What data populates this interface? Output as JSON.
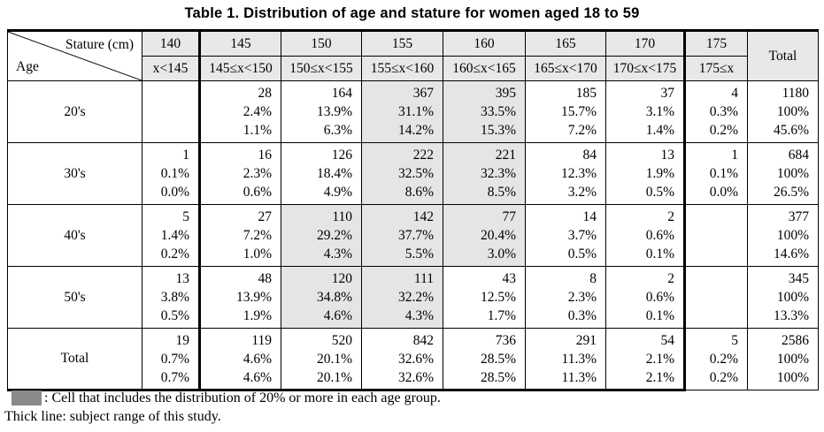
{
  "title": "Table 1. Distribution of age and stature for women aged 18 to 59",
  "corner": {
    "stature_label": "Stature (cm)",
    "age_label": "Age"
  },
  "total_header": "Total",
  "columns": [
    {
      "value": "140",
      "range": "x<145"
    },
    {
      "value": "145",
      "range": "145≤x<150"
    },
    {
      "value": "150",
      "range": "150≤x<155"
    },
    {
      "value": "155",
      "range": "155≤x<160"
    },
    {
      "value": "160",
      "range": "160≤x<165"
    },
    {
      "value": "165",
      "range": "165≤x<170"
    },
    {
      "value": "170",
      "range": "170≤x<175"
    },
    {
      "value": "175",
      "range": "175≤x"
    }
  ],
  "rows": [
    {
      "label": "20's",
      "cells": [
        {
          "lines": [],
          "shaded": false
        },
        {
          "lines": [
            "28",
            "2.4%",
            "1.1%"
          ],
          "shaded": false
        },
        {
          "lines": [
            "164",
            "13.9%",
            "6.3%"
          ],
          "shaded": false
        },
        {
          "lines": [
            "367",
            "31.1%",
            "14.2%"
          ],
          "shaded": true
        },
        {
          "lines": [
            "395",
            "33.5%",
            "15.3%"
          ],
          "shaded": true
        },
        {
          "lines": [
            "185",
            "15.7%",
            "7.2%"
          ],
          "shaded": false
        },
        {
          "lines": [
            "37",
            "3.1%",
            "1.4%"
          ],
          "shaded": false
        },
        {
          "lines": [
            "4",
            "0.3%",
            "0.2%"
          ],
          "shaded": false
        }
      ],
      "total": [
        "1180",
        "100%",
        "45.6%"
      ]
    },
    {
      "label": "30's",
      "cells": [
        {
          "lines": [
            "1",
            "0.1%",
            "0.0%"
          ],
          "shaded": false
        },
        {
          "lines": [
            "16",
            "2.3%",
            "0.6%"
          ],
          "shaded": false
        },
        {
          "lines": [
            "126",
            "18.4%",
            "4.9%"
          ],
          "shaded": false
        },
        {
          "lines": [
            "222",
            "32.5%",
            "8.6%"
          ],
          "shaded": true
        },
        {
          "lines": [
            "221",
            "32.3%",
            "8.5%"
          ],
          "shaded": true
        },
        {
          "lines": [
            "84",
            "12.3%",
            "3.2%"
          ],
          "shaded": false
        },
        {
          "lines": [
            "13",
            "1.9%",
            "0.5%"
          ],
          "shaded": false
        },
        {
          "lines": [
            "1",
            "0.1%",
            "0.0%"
          ],
          "shaded": false
        }
      ],
      "total": [
        "684",
        "100%",
        "26.5%"
      ]
    },
    {
      "label": "40's",
      "cells": [
        {
          "lines": [
            "5",
            "1.4%",
            "0.2%"
          ],
          "shaded": false
        },
        {
          "lines": [
            "27",
            "7.2%",
            "1.0%"
          ],
          "shaded": false
        },
        {
          "lines": [
            "110",
            "29.2%",
            "4.3%"
          ],
          "shaded": true
        },
        {
          "lines": [
            "142",
            "37.7%",
            "5.5%"
          ],
          "shaded": true
        },
        {
          "lines": [
            "77",
            "20.4%",
            "3.0%"
          ],
          "shaded": true
        },
        {
          "lines": [
            "14",
            "3.7%",
            "0.5%"
          ],
          "shaded": false
        },
        {
          "lines": [
            "2",
            "0.6%",
            "0.1%"
          ],
          "shaded": false
        },
        {
          "lines": [],
          "shaded": false
        }
      ],
      "total": [
        "377",
        "100%",
        "14.6%"
      ]
    },
    {
      "label": "50's",
      "cells": [
        {
          "lines": [
            "13",
            "3.8%",
            "0.5%"
          ],
          "shaded": false
        },
        {
          "lines": [
            "48",
            "13.9%",
            "1.9%"
          ],
          "shaded": false
        },
        {
          "lines": [
            "120",
            "34.8%",
            "4.6%"
          ],
          "shaded": true
        },
        {
          "lines": [
            "111",
            "32.2%",
            "4.3%"
          ],
          "shaded": true
        },
        {
          "lines": [
            "43",
            "12.5%",
            "1.7%"
          ],
          "shaded": false
        },
        {
          "lines": [
            "8",
            "2.3%",
            "0.3%"
          ],
          "shaded": false
        },
        {
          "lines": [
            "2",
            "0.6%",
            "0.1%"
          ],
          "shaded": false
        },
        {
          "lines": [],
          "shaded": false
        }
      ],
      "total": [
        "345",
        "100%",
        "13.3%"
      ]
    },
    {
      "label": "Total",
      "cells": [
        {
          "lines": [
            "19",
            "0.7%",
            "0.7%"
          ],
          "shaded": false
        },
        {
          "lines": [
            "119",
            "4.6%",
            "4.6%"
          ],
          "shaded": false
        },
        {
          "lines": [
            "520",
            "20.1%",
            "20.1%"
          ],
          "shaded": false
        },
        {
          "lines": [
            "842",
            "32.6%",
            "32.6%"
          ],
          "shaded": false
        },
        {
          "lines": [
            "736",
            "28.5%",
            "28.5%"
          ],
          "shaded": false
        },
        {
          "lines": [
            "291",
            "11.3%",
            "11.3%"
          ],
          "shaded": false
        },
        {
          "lines": [
            "54",
            "2.1%",
            "2.1%"
          ],
          "shaded": false
        },
        {
          "lines": [
            "5",
            "0.2%",
            "0.2%"
          ],
          "shaded": false
        }
      ],
      "total": [
        "2586",
        "100%",
        "100%"
      ]
    }
  ],
  "legend": {
    "shaded_text": ": Cell that includes the distribution of 20% or more in each age group.",
    "thick_text": "Thick line: subject range of this study."
  },
  "colors": {
    "header_bg": "#e8e8e8",
    "shaded_bg": "#e5e5e5",
    "swatch": "#8a8a8a",
    "border": "#000000"
  }
}
